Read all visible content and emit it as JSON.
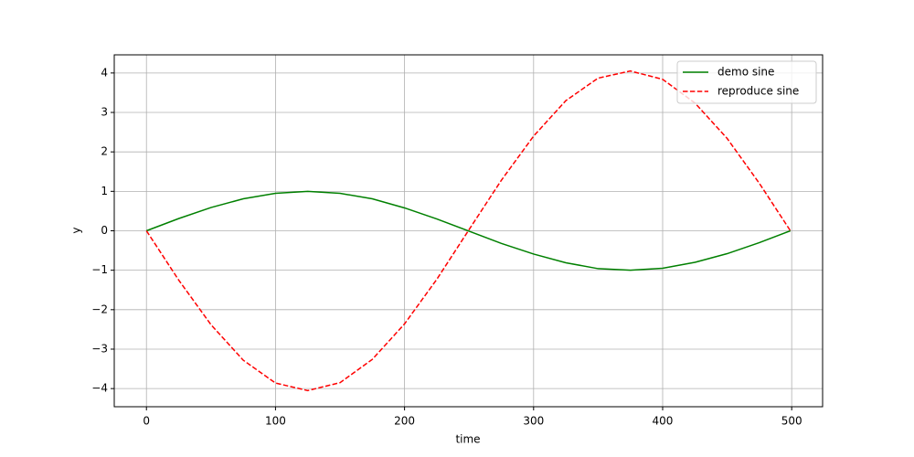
{
  "chart_data": {
    "type": "line",
    "xlabel": "time",
    "ylabel": "y",
    "x": [
      0,
      25,
      50,
      75,
      100,
      125,
      150,
      175,
      200,
      225,
      250,
      275,
      300,
      325,
      350,
      375,
      400,
      425,
      450,
      475,
      499
    ],
    "series": [
      {
        "name": "demo sine",
        "color": "#008000",
        "dash": false,
        "values": [
          0,
          0.31,
          0.59,
          0.81,
          0.95,
          1.0,
          0.95,
          0.81,
          0.58,
          0.3,
          -0.01,
          -0.32,
          -0.59,
          -0.81,
          -0.96,
          -1.0,
          -0.95,
          -0.8,
          -0.58,
          -0.3,
          0
        ]
      },
      {
        "name": "reproduce sine",
        "color": "#ff0000",
        "dash": true,
        "values": [
          0,
          -1.25,
          -2.38,
          -3.28,
          -3.86,
          -4.05,
          -3.85,
          -3.26,
          -2.36,
          -1.23,
          0.03,
          1.28,
          2.4,
          3.3,
          3.87,
          4.05,
          3.84,
          3.24,
          2.34,
          1.2,
          0
        ]
      }
    ],
    "xlim": [
      -24.95,
      523.95
    ],
    "ylim": [
      -4.46,
      4.46
    ],
    "xticks": [
      0,
      100,
      200,
      300,
      400,
      500
    ],
    "yticks": [
      {
        "value": -4,
        "label": "−4"
      },
      {
        "value": -3,
        "label": "−3"
      },
      {
        "value": -2,
        "label": "−2"
      },
      {
        "value": -1,
        "label": "−1"
      },
      0,
      1,
      2,
      3,
      4
    ],
    "grid": true,
    "legend": "upper right"
  }
}
